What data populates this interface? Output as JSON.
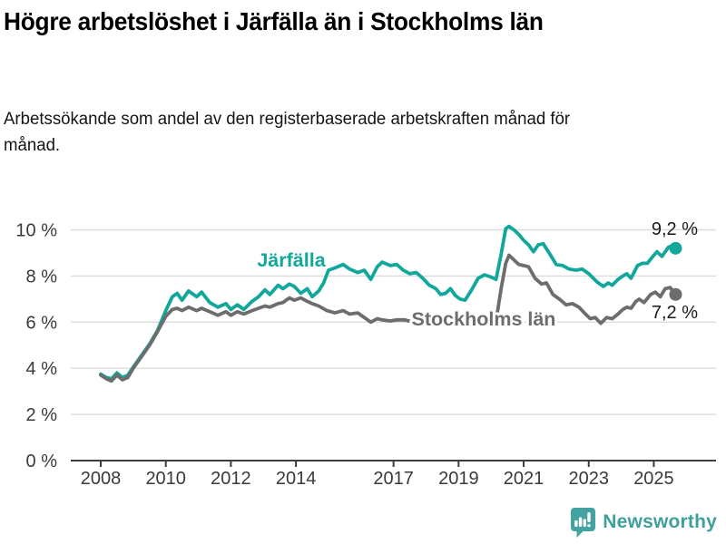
{
  "header": {
    "title": "Högre arbetslöshet i Järfälla än i Stockholms län",
    "subtitle": "Arbetssökande som andel av den registerbaserade arbetskraften månad för månad."
  },
  "chart_data": {
    "type": "line",
    "title": "Högre arbetslöshet i Järfälla än i Stockholms län",
    "subtitle": "Arbetssökande som andel av den registerbaserade arbetskraften månad för månad.",
    "unit": "%",
    "grid": true,
    "xlim": [
      2007.75,
      2026.7
    ],
    "ylim": [
      0,
      10.6
    ],
    "y_ticks": [
      {
        "value": 0,
        "label": "0 %"
      },
      {
        "value": 2,
        "label": "2 %"
      },
      {
        "value": 4,
        "label": "4 %"
      },
      {
        "value": 6,
        "label": "6 %"
      },
      {
        "value": 8,
        "label": "8 %"
      },
      {
        "value": 10,
        "label": "10 %"
      }
    ],
    "x_ticks": [
      {
        "value": 2008,
        "label": "2008"
      },
      {
        "value": 2010,
        "label": "2010"
      },
      {
        "value": 2012,
        "label": "2012"
      },
      {
        "value": 2014,
        "label": "2014"
      },
      {
        "value": 2017,
        "label": "2017"
      },
      {
        "value": 2019,
        "label": "2019"
      },
      {
        "value": 2021,
        "label": "2021"
      },
      {
        "value": 2023,
        "label": "2023"
      },
      {
        "value": 2025,
        "label": "2025"
      }
    ],
    "series": [
      {
        "name": "Järfälla",
        "color": "#11a79b",
        "end_label": "9,2 %",
        "end_value": 9.2,
        "points": [
          [
            2008.0,
            3.75
          ],
          [
            2008.17,
            3.6
          ],
          [
            2008.33,
            3.55
          ],
          [
            2008.5,
            3.8
          ],
          [
            2008.67,
            3.6
          ],
          [
            2008.83,
            3.7
          ],
          [
            2009.0,
            4.05
          ],
          [
            2009.25,
            4.55
          ],
          [
            2009.5,
            5.05
          ],
          [
            2009.75,
            5.65
          ],
          [
            2010.0,
            6.5
          ],
          [
            2010.2,
            7.1
          ],
          [
            2010.35,
            7.25
          ],
          [
            2010.5,
            6.95
          ],
          [
            2010.7,
            7.35
          ],
          [
            2010.95,
            7.1
          ],
          [
            2011.1,
            7.3
          ],
          [
            2011.35,
            6.85
          ],
          [
            2011.6,
            6.65
          ],
          [
            2011.85,
            6.8
          ],
          [
            2012.0,
            6.55
          ],
          [
            2012.2,
            6.75
          ],
          [
            2012.4,
            6.55
          ],
          [
            2012.65,
            6.9
          ],
          [
            2012.85,
            7.1
          ],
          [
            2013.05,
            7.4
          ],
          [
            2013.2,
            7.2
          ],
          [
            2013.45,
            7.6
          ],
          [
            2013.6,
            7.45
          ],
          [
            2013.8,
            7.65
          ],
          [
            2013.95,
            7.55
          ],
          [
            2014.15,
            7.25
          ],
          [
            2014.35,
            7.45
          ],
          [
            2014.5,
            7.1
          ],
          [
            2014.7,
            7.35
          ],
          [
            2014.85,
            7.7
          ],
          [
            2015.0,
            8.25
          ],
          [
            2015.2,
            8.35
          ],
          [
            2015.45,
            8.5
          ],
          [
            2015.65,
            8.3
          ],
          [
            2015.9,
            8.15
          ],
          [
            2016.1,
            8.25
          ],
          [
            2016.3,
            7.85
          ],
          [
            2016.5,
            8.4
          ],
          [
            2016.65,
            8.6
          ],
          [
            2016.9,
            8.45
          ],
          [
            2017.1,
            8.5
          ],
          [
            2017.3,
            8.25
          ],
          [
            2017.5,
            8.1
          ],
          [
            2017.7,
            8.15
          ],
          [
            2017.9,
            7.9
          ],
          [
            2018.1,
            7.6
          ],
          [
            2018.3,
            7.45
          ],
          [
            2018.45,
            7.2
          ],
          [
            2018.6,
            7.25
          ],
          [
            2018.75,
            7.45
          ],
          [
            2018.9,
            7.15
          ],
          [
            2019.05,
            7.0
          ],
          [
            2019.2,
            6.95
          ],
          [
            2019.4,
            7.4
          ],
          [
            2019.6,
            7.9
          ],
          [
            2019.8,
            8.05
          ],
          [
            2020.0,
            7.95
          ],
          [
            2020.15,
            7.85
          ],
          [
            2020.3,
            8.9
          ],
          [
            2020.45,
            10.05
          ],
          [
            2020.55,
            10.15
          ],
          [
            2020.7,
            10.0
          ],
          [
            2020.85,
            9.8
          ],
          [
            2021.0,
            9.55
          ],
          [
            2021.15,
            9.35
          ],
          [
            2021.3,
            9.05
          ],
          [
            2021.45,
            9.35
          ],
          [
            2021.6,
            9.4
          ],
          [
            2021.85,
            8.85
          ],
          [
            2022.0,
            8.5
          ],
          [
            2022.2,
            8.45
          ],
          [
            2022.4,
            8.3
          ],
          [
            2022.6,
            8.25
          ],
          [
            2022.8,
            8.3
          ],
          [
            2023.0,
            8.1
          ],
          [
            2023.25,
            7.75
          ],
          [
            2023.45,
            7.55
          ],
          [
            2023.6,
            7.7
          ],
          [
            2023.72,
            7.6
          ],
          [
            2023.9,
            7.85
          ],
          [
            2024.05,
            8.0
          ],
          [
            2024.17,
            8.1
          ],
          [
            2024.3,
            7.9
          ],
          [
            2024.5,
            8.45
          ],
          [
            2024.65,
            8.55
          ],
          [
            2024.8,
            8.55
          ],
          [
            2025.0,
            8.9
          ],
          [
            2025.1,
            9.05
          ],
          [
            2025.25,
            8.85
          ],
          [
            2025.45,
            9.25
          ],
          [
            2025.55,
            9.3
          ],
          [
            2025.67,
            9.2
          ]
        ]
      },
      {
        "name": "Stockholms län",
        "color": "#6d6d6d",
        "end_label": "7,2 %",
        "end_value": 7.2,
        "points": [
          [
            2008.0,
            3.7
          ],
          [
            2008.17,
            3.55
          ],
          [
            2008.33,
            3.45
          ],
          [
            2008.5,
            3.7
          ],
          [
            2008.67,
            3.5
          ],
          [
            2008.83,
            3.6
          ],
          [
            2009.0,
            4.0
          ],
          [
            2009.25,
            4.5
          ],
          [
            2009.5,
            5.0
          ],
          [
            2009.75,
            5.6
          ],
          [
            2010.0,
            6.25
          ],
          [
            2010.2,
            6.55
          ],
          [
            2010.35,
            6.6
          ],
          [
            2010.5,
            6.5
          ],
          [
            2010.7,
            6.65
          ],
          [
            2010.95,
            6.5
          ],
          [
            2011.1,
            6.6
          ],
          [
            2011.35,
            6.45
          ],
          [
            2011.6,
            6.3
          ],
          [
            2011.85,
            6.45
          ],
          [
            2012.0,
            6.3
          ],
          [
            2012.2,
            6.45
          ],
          [
            2012.4,
            6.35
          ],
          [
            2012.65,
            6.5
          ],
          [
            2012.85,
            6.6
          ],
          [
            2013.05,
            6.7
          ],
          [
            2013.2,
            6.65
          ],
          [
            2013.45,
            6.8
          ],
          [
            2013.6,
            6.85
          ],
          [
            2013.8,
            7.05
          ],
          [
            2013.95,
            6.95
          ],
          [
            2014.15,
            7.05
          ],
          [
            2014.35,
            6.9
          ],
          [
            2014.5,
            6.8
          ],
          [
            2014.7,
            6.7
          ],
          [
            2014.95,
            6.5
          ],
          [
            2015.2,
            6.4
          ],
          [
            2015.45,
            6.5
          ],
          [
            2015.65,
            6.35
          ],
          [
            2015.9,
            6.4
          ],
          [
            2016.1,
            6.2
          ],
          [
            2016.3,
            6.0
          ],
          [
            2016.5,
            6.15
          ],
          [
            2016.65,
            6.1
          ],
          [
            2016.9,
            6.05
          ],
          [
            2017.1,
            6.1
          ],
          [
            2017.35,
            6.1
          ],
          [
            2017.6,
            6.0
          ],
          [
            2017.85,
            5.95
          ],
          [
            2018.1,
            5.95
          ],
          [
            2018.4,
            5.9
          ],
          [
            2018.7,
            5.95
          ],
          [
            2019.0,
            5.85
          ],
          [
            2019.3,
            5.9
          ],
          [
            2019.6,
            5.95
          ],
          [
            2019.85,
            5.9
          ],
          [
            2020.0,
            5.95
          ],
          [
            2020.15,
            6.05
          ],
          [
            2020.3,
            7.4
          ],
          [
            2020.45,
            8.55
          ],
          [
            2020.55,
            8.9
          ],
          [
            2020.7,
            8.7
          ],
          [
            2020.85,
            8.5
          ],
          [
            2021.0,
            8.45
          ],
          [
            2021.15,
            8.4
          ],
          [
            2021.35,
            7.9
          ],
          [
            2021.55,
            7.65
          ],
          [
            2021.7,
            7.7
          ],
          [
            2021.9,
            7.2
          ],
          [
            2022.1,
            7.0
          ],
          [
            2022.3,
            6.75
          ],
          [
            2022.5,
            6.8
          ],
          [
            2022.7,
            6.65
          ],
          [
            2022.9,
            6.35
          ],
          [
            2023.05,
            6.15
          ],
          [
            2023.2,
            6.2
          ],
          [
            2023.37,
            5.95
          ],
          [
            2023.55,
            6.2
          ],
          [
            2023.72,
            6.15
          ],
          [
            2023.9,
            6.35
          ],
          [
            2024.05,
            6.55
          ],
          [
            2024.17,
            6.65
          ],
          [
            2024.3,
            6.6
          ],
          [
            2024.45,
            6.9
          ],
          [
            2024.55,
            7.0
          ],
          [
            2024.7,
            6.85
          ],
          [
            2024.9,
            7.2
          ],
          [
            2025.05,
            7.3
          ],
          [
            2025.2,
            7.1
          ],
          [
            2025.35,
            7.45
          ],
          [
            2025.5,
            7.5
          ],
          [
            2025.67,
            7.2
          ]
        ]
      }
    ],
    "colors": {
      "grid": "#dcdcdc",
      "axis": "#3d3d3d",
      "tick_label": "#3a3a3a",
      "end_label": "#1a1a1a"
    },
    "legend_position": "inline-labels"
  },
  "footer": {
    "brand": "Newsworthy",
    "brand_color": "#3f9f9c"
  }
}
